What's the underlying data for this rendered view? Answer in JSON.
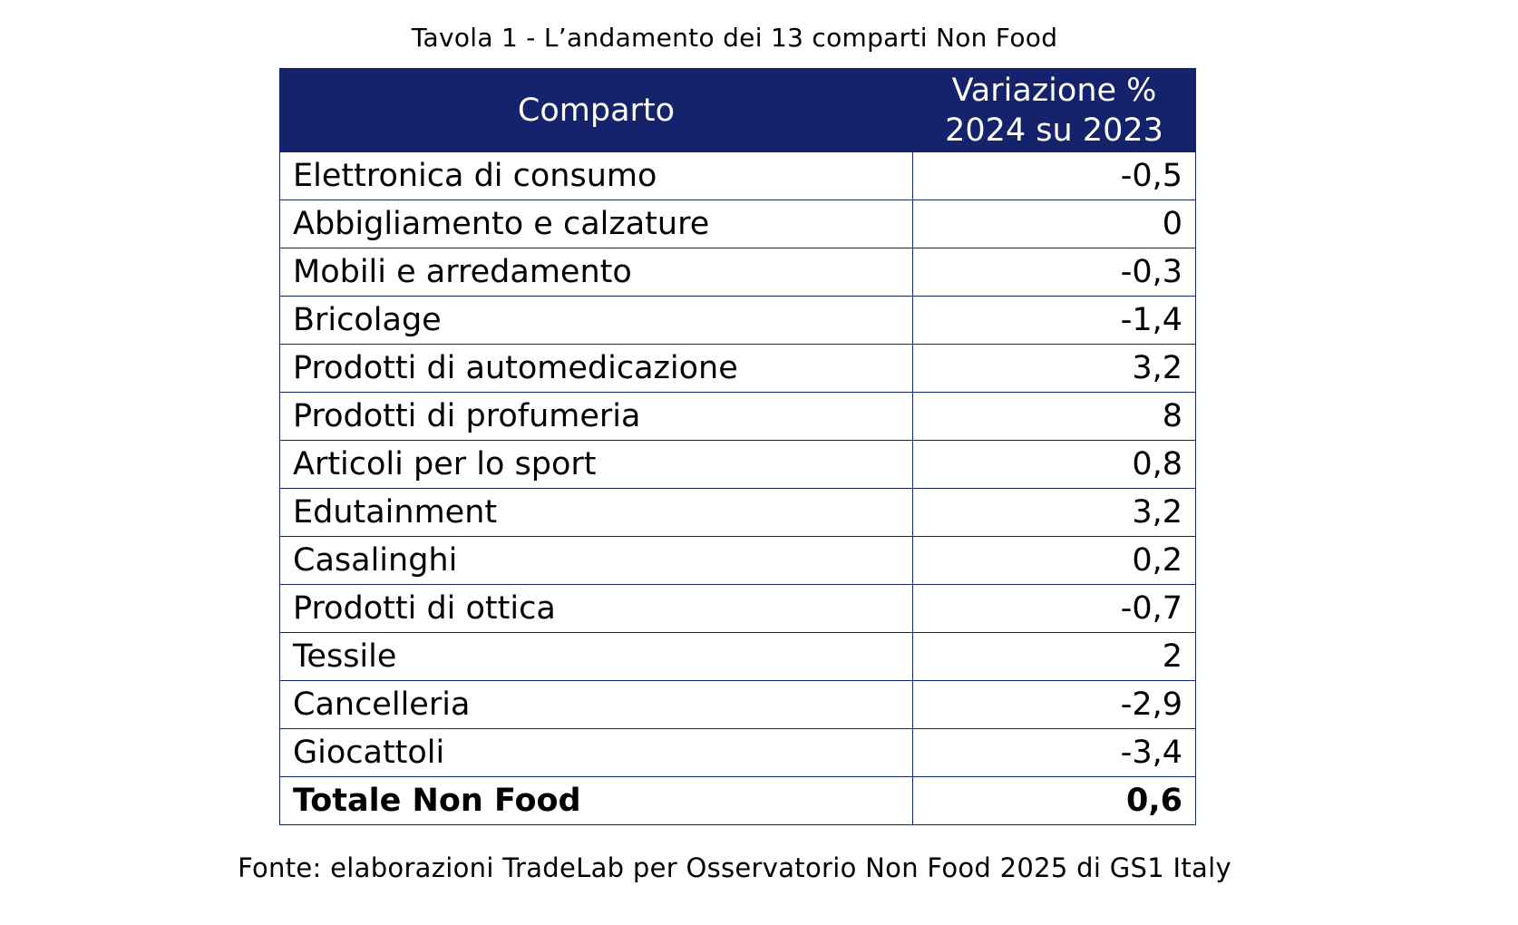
{
  "title": "Tavola 1 - L’andamento dei 13 comparti Non Food",
  "table": {
    "headers": {
      "col1": "Comparto",
      "col2_line1": "Variazione %",
      "col2_line2": "2024 su 2023"
    },
    "rows": [
      {
        "name": "Elettronica di consumo",
        "value": "-0,5"
      },
      {
        "name": "Abbigliamento e calzature",
        "value": "0"
      },
      {
        "name": "Mobili e arredamento",
        "value": "-0,3"
      },
      {
        "name": "Bricolage",
        "value": "-1,4"
      },
      {
        "name": "Prodotti di automedicazione",
        "value": "3,2"
      },
      {
        "name": "Prodotti di profumeria",
        "value": "8"
      },
      {
        "name": "Articoli per lo sport",
        "value": "0,8"
      },
      {
        "name": "Edutainment",
        "value": "3,2"
      },
      {
        "name": "Casalinghi",
        "value": "0,2"
      },
      {
        "name": "Prodotti di ottica",
        "value": "-0,7"
      },
      {
        "name": "Tessile",
        "value": "2"
      },
      {
        "name": "Cancelleria",
        "value": "-2,9"
      },
      {
        "name": "Giocattoli",
        "value": "-3,4"
      }
    ],
    "total": {
      "name": "Totale Non Food",
      "value": "0,6"
    }
  },
  "source": "Fonte: elaborazioni TradeLab per Osservatorio Non Food 2025 di GS1 Italy",
  "colors": {
    "header_bg": "#14236b",
    "header_text": "#ffffff",
    "border": "#14236b"
  }
}
